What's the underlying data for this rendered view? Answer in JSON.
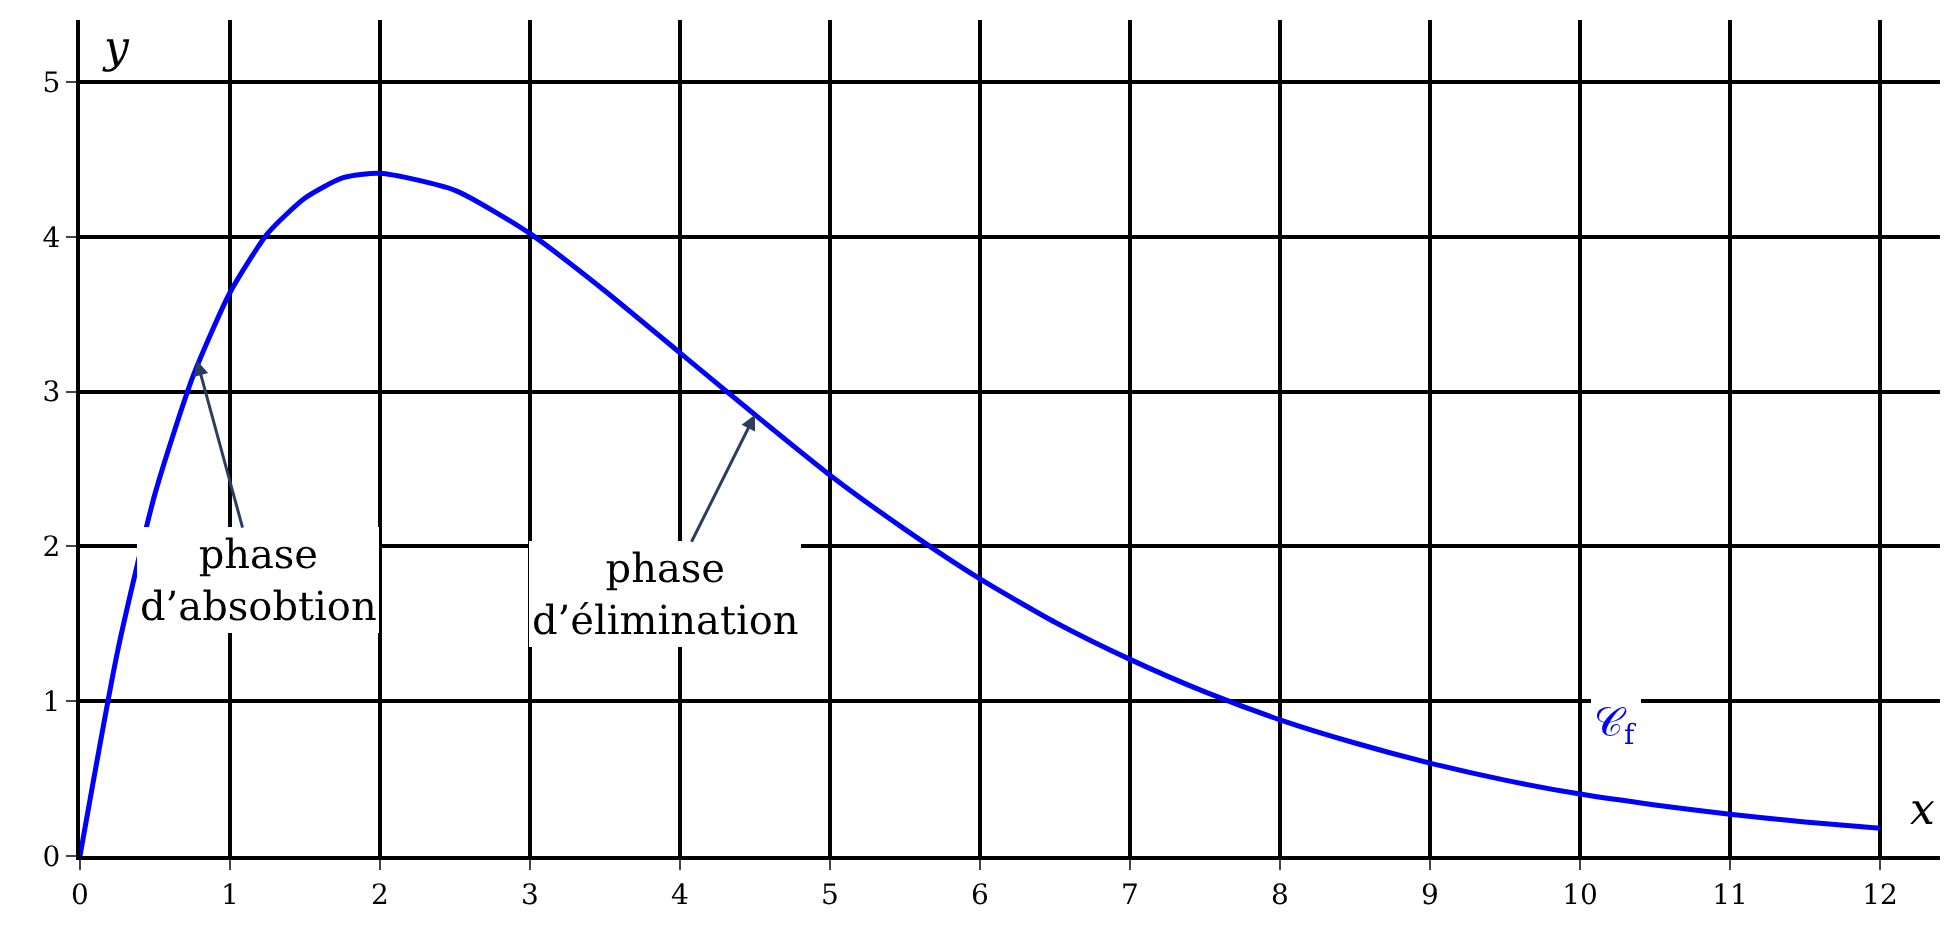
{
  "chart_data": {
    "type": "line",
    "xlabel": "x",
    "ylabel": "y",
    "xlim": [
      0,
      12.4
    ],
    "ylim": [
      0,
      5.4
    ],
    "xticks": [
      0,
      1,
      2,
      3,
      4,
      5,
      6,
      7,
      8,
      9,
      10,
      11,
      12
    ],
    "yticks": [
      0,
      1,
      2,
      3,
      4,
      5
    ],
    "grid": true,
    "legend": false,
    "marker": "none",
    "line_style": "solid",
    "series": [
      {
        "name": "𝒞$_{f}$",
        "color": "#0000ff",
        "x": [
          0,
          0.25,
          0.5,
          0.75,
          1,
          1.25,
          1.5,
          1.75,
          2,
          2.5,
          3,
          3.5,
          4,
          4.5,
          5,
          5.5,
          6,
          6.5,
          7,
          7.5,
          8,
          8.5,
          9,
          9.5,
          10,
          10.5,
          11,
          11.5,
          12
        ],
        "values": [
          0,
          1.32,
          2.34,
          3.09,
          3.64,
          4.02,
          4.25,
          4.38,
          4.41,
          4.3,
          4.02,
          3.65,
          3.25,
          2.85,
          2.46,
          2.11,
          1.79,
          1.51,
          1.27,
          1.06,
          0.88,
          0.73,
          0.6,
          0.49,
          0.4,
          0.33,
          0.27,
          0.22,
          0.18
        ]
      }
    ],
    "annotations": [
      {
        "text": "phase\nd’absobtion",
        "x": 0.78,
        "y": 3.2
      },
      {
        "text": "phase\nd’élimination",
        "x": 4.5,
        "y": 2.85
      }
    ]
  }
}
